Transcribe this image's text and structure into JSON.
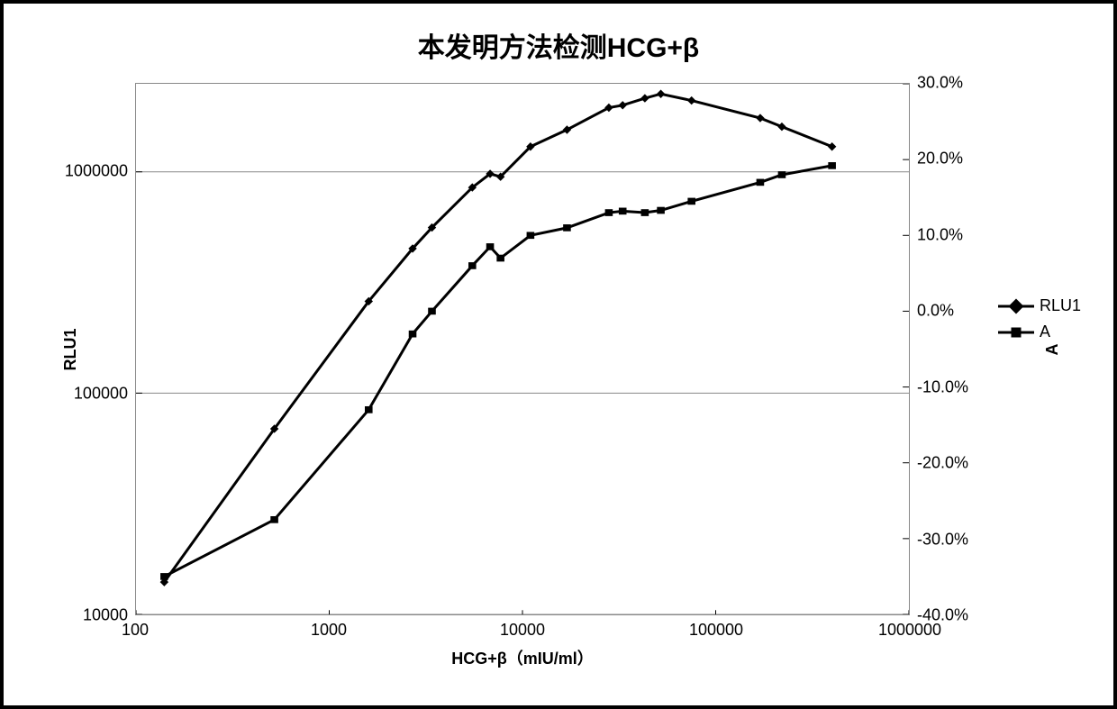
{
  "chart": {
    "title": "本发明方法检测HCG+β",
    "type": "line-dual-axis",
    "xaxis": {
      "label": "HCG+β（mIU/ml）",
      "scale": "log",
      "min": 100,
      "max": 1000000,
      "ticks": [
        100,
        1000,
        10000,
        100000,
        1000000
      ],
      "tick_labels": [
        "100",
        "1000",
        "10000",
        "100000",
        "1000000"
      ],
      "fontsize": 18
    },
    "yaxis_left": {
      "label": "RLU1",
      "scale": "log",
      "min": 10000,
      "max": 2500000,
      "ticks": [
        10000,
        100000,
        1000000
      ],
      "tick_labels": [
        "10000",
        "100000",
        "1000000"
      ],
      "fontsize": 18
    },
    "yaxis_right": {
      "label": "A",
      "scale": "linear",
      "min": -40,
      "max": 30,
      "ticks": [
        -40,
        -30,
        -20,
        -10,
        0,
        10,
        20,
        30
      ],
      "tick_labels": [
        "-40.0%",
        "-30.0%",
        "-20.0%",
        "-10.0%",
        "0.0%",
        "10.0%",
        "20.0%",
        "30.0%"
      ],
      "fontsize": 18
    },
    "series": [
      {
        "name": "RLU1",
        "marker": "diamond",
        "axis": "left",
        "color": "#000000",
        "line_width": 3,
        "marker_size": 10,
        "data": [
          {
            "x": 140,
            "y": 14000
          },
          {
            "x": 520,
            "y": 69000
          },
          {
            "x": 1600,
            "y": 260000
          },
          {
            "x": 2700,
            "y": 450000
          },
          {
            "x": 3400,
            "y": 560000
          },
          {
            "x": 5500,
            "y": 850000
          },
          {
            "x": 6800,
            "y": 980000
          },
          {
            "x": 7700,
            "y": 950000
          },
          {
            "x": 11000,
            "y": 1300000
          },
          {
            "x": 17000,
            "y": 1550000
          },
          {
            "x": 28000,
            "y": 1950000
          },
          {
            "x": 33000,
            "y": 2000000
          },
          {
            "x": 43000,
            "y": 2150000
          },
          {
            "x": 52000,
            "y": 2250000
          },
          {
            "x": 75000,
            "y": 2100000
          },
          {
            "x": 170000,
            "y": 1750000
          },
          {
            "x": 220000,
            "y": 1600000
          },
          {
            "x": 400000,
            "y": 1300000
          }
        ]
      },
      {
        "name": "A",
        "marker": "square",
        "axis": "right",
        "color": "#000000",
        "line_width": 3,
        "marker_size": 10,
        "data": [
          {
            "x": 140,
            "y": -35
          },
          {
            "x": 520,
            "y": -27.5
          },
          {
            "x": 1600,
            "y": -13
          },
          {
            "x": 2700,
            "y": -3
          },
          {
            "x": 3400,
            "y": 0
          },
          {
            "x": 5500,
            "y": 6
          },
          {
            "x": 6800,
            "y": 8.5
          },
          {
            "x": 7700,
            "y": 7
          },
          {
            "x": 11000,
            "y": 10
          },
          {
            "x": 17000,
            "y": 11
          },
          {
            "x": 28000,
            "y": 13
          },
          {
            "x": 33000,
            "y": 13.2
          },
          {
            "x": 43000,
            "y": 13
          },
          {
            "x": 52000,
            "y": 13.3
          },
          {
            "x": 75000,
            "y": 14.5
          },
          {
            "x": 170000,
            "y": 17
          },
          {
            "x": 220000,
            "y": 18
          },
          {
            "x": 400000,
            "y": 19.2
          }
        ]
      }
    ],
    "legend": {
      "position": "right",
      "items": [
        {
          "label": "RLU1",
          "marker": "diamond"
        },
        {
          "label": "A",
          "marker": "square"
        }
      ],
      "fontsize": 18
    },
    "gridlines_y": true,
    "grid_color": "#888888",
    "background_color": "#ffffff",
    "border_color": "#000000",
    "title_fontsize": 30
  }
}
